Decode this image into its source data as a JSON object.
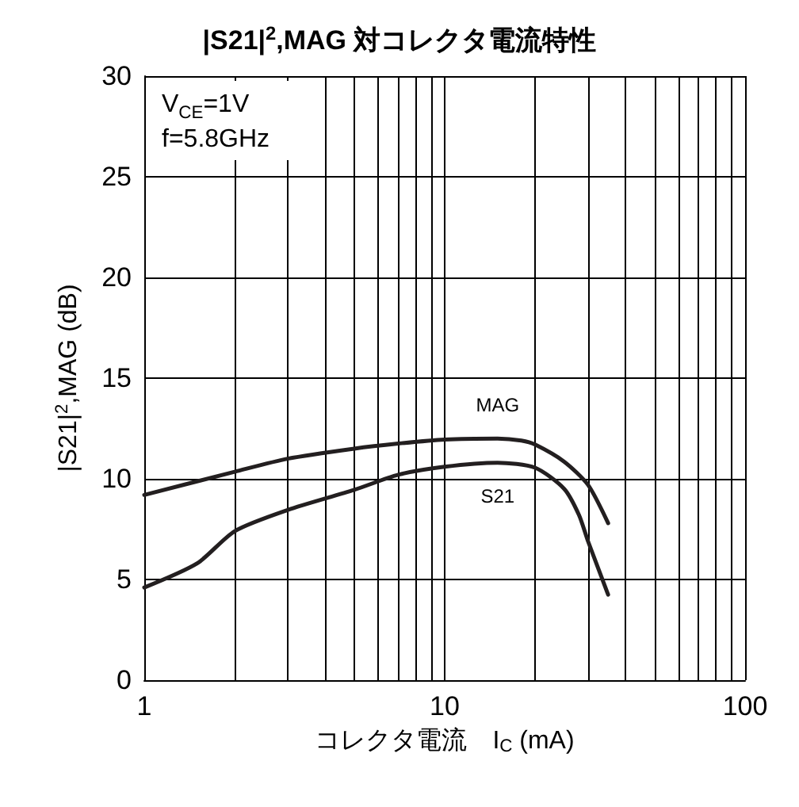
{
  "chart_data": {
    "type": "line",
    "title": "|S21|$^{2}$,MAG 対コレクタ電流特性",
    "xlabel": "コレクタ電流　I$_{C}$ (mA)",
    "ylabel": "|S21|$^{2}$,MAG (dB)",
    "log": "x",
    "xlim": [
      1,
      100
    ],
    "ylim": [
      0,
      30
    ],
    "xticks": [
      1,
      {
        "value": 2,
        "label": null
      },
      {
        "value": 3,
        "label": null
      },
      {
        "value": 4,
        "label": null
      },
      {
        "value": 5,
        "label": null
      },
      {
        "value": 6,
        "label": null
      },
      {
        "value": 7,
        "label": null
      },
      {
        "value": 8,
        "label": null
      },
      {
        "value": 9,
        "label": null
      },
      10,
      {
        "value": 20,
        "label": null
      },
      {
        "value": 30,
        "label": null
      },
      {
        "value": 40,
        "label": null
      },
      {
        "value": 50,
        "label": null
      },
      {
        "value": 60,
        "label": null
      },
      {
        "value": 70,
        "label": null
      },
      {
        "value": 80,
        "label": null
      },
      {
        "value": 90,
        "label": null
      },
      100
    ],
    "yticks": [
      0,
      5,
      10,
      15,
      20,
      25,
      30
    ],
    "grid": true,
    "legend": false,
    "marker": "none",
    "line_style": "solid",
    "annotations": [
      "V$_{CE}$=1V",
      "f=5.8GHz"
    ],
    "series": [
      {
        "name": "MAG",
        "color": "#231f20",
        "x": [
          1,
          2,
          3,
          5,
          7,
          10,
          15,
          18,
          20,
          25,
          30,
          35
        ],
        "values": [
          9.2,
          10.35,
          11.0,
          11.5,
          11.75,
          11.95,
          12.0,
          11.9,
          11.7,
          10.85,
          9.7,
          7.8
        ]
      },
      {
        "name": "S21",
        "color": "#231f20",
        "x": [
          1,
          1.5,
          2,
          3,
          5,
          7,
          10,
          15,
          20,
          25,
          28,
          30,
          35
        ],
        "values": [
          4.6,
          5.8,
          7.4,
          8.45,
          9.45,
          10.2,
          10.6,
          10.8,
          10.55,
          9.5,
          8.2,
          6.9,
          4.25
        ]
      }
    ]
  }
}
